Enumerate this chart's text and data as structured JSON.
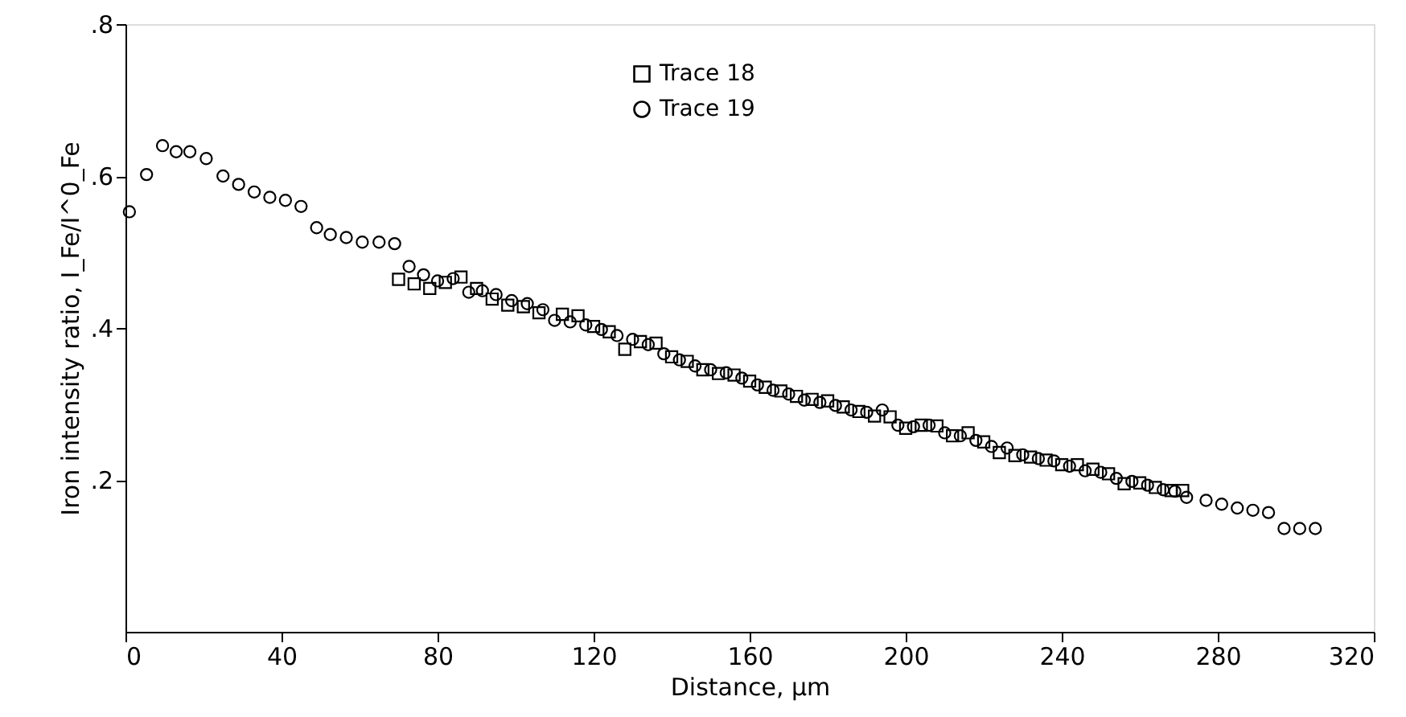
{
  "chart_data": {
    "type": "scatter",
    "xlabel": "Distance, µm",
    "ylabel": "Iron intensity ratio, I_Fe/I^0_Fe",
    "xlim": [
      0,
      320
    ],
    "xticks": [
      0,
      40,
      80,
      120,
      160,
      200,
      240,
      280,
      320
    ],
    "ylim": [
      0,
      0.8
    ],
    "yticks": [
      {
        "value": 0.2,
        "label": ".2"
      },
      {
        "value": 0.4,
        "label": ".4"
      },
      {
        "value": 0.6,
        "label": ".6"
      },
      {
        "value": 0.8,
        "label": ".8"
      }
    ],
    "grid": false,
    "legend": "top",
    "series": [
      {
        "name": "Trace 18",
        "color": "#000000",
        "marker": "square",
        "x": [
          70,
          74,
          78,
          82,
          86,
          90,
          94,
          98,
          102,
          106,
          112,
          116,
          120,
          124,
          128,
          132,
          136,
          140,
          144,
          148,
          152,
          156,
          160,
          164,
          168,
          172,
          176,
          180,
          184,
          188,
          192,
          196,
          200,
          204,
          208,
          212,
          216,
          220,
          224,
          228,
          232,
          236,
          240,
          244,
          248,
          252,
          256,
          260,
          264,
          268,
          271
        ],
        "values": [
          0.464,
          0.458,
          0.452,
          0.46,
          0.467,
          0.452,
          0.438,
          0.43,
          0.428,
          0.42,
          0.418,
          0.416,
          0.402,
          0.395,
          0.372,
          0.382,
          0.38,
          0.362,
          0.356,
          0.345,
          0.34,
          0.338,
          0.33,
          0.322,
          0.317,
          0.31,
          0.306,
          0.304,
          0.296,
          0.29,
          0.284,
          0.283,
          0.268,
          0.272,
          0.271,
          0.258,
          0.262,
          0.25,
          0.236,
          0.232,
          0.23,
          0.226,
          0.22,
          0.22,
          0.214,
          0.208,
          0.195,
          0.196,
          0.19,
          0.186,
          0.186
        ]
      },
      {
        "name": "Trace 19",
        "color": "#000000",
        "marker": "circle",
        "x": [
          1,
          5.4,
          9.5,
          13,
          16.5,
          20.7,
          25,
          29,
          33,
          37,
          41,
          45,
          49,
          52.5,
          56.6,
          60.7,
          65,
          69,
          72.7,
          76.4,
          80,
          84,
          88,
          91.5,
          95,
          99,
          103,
          107,
          110,
          114,
          118,
          122,
          126,
          130,
          134,
          138,
          142,
          146,
          150,
          154,
          158,
          162,
          166,
          170,
          174,
          178,
          182,
          186,
          190,
          194,
          198,
          202,
          206,
          210,
          214,
          218,
          222,
          226,
          230,
          234,
          238,
          242,
          246,
          250,
          254,
          258,
          262,
          266,
          269,
          272,
          277,
          281,
          285,
          289,
          293,
          297,
          301,
          305
        ],
        "values": [
          0.553,
          0.602,
          0.64,
          0.632,
          0.632,
          0.623,
          0.6,
          0.589,
          0.579,
          0.572,
          0.568,
          0.56,
          0.532,
          0.523,
          0.519,
          0.513,
          0.513,
          0.511,
          0.481,
          0.47,
          0.462,
          0.465,
          0.447,
          0.449,
          0.444,
          0.436,
          0.432,
          0.424,
          0.41,
          0.408,
          0.404,
          0.398,
          0.39,
          0.385,
          0.378,
          0.366,
          0.358,
          0.35,
          0.345,
          0.341,
          0.334,
          0.325,
          0.318,
          0.313,
          0.305,
          0.302,
          0.298,
          0.292,
          0.289,
          0.292,
          0.272,
          0.27,
          0.272,
          0.262,
          0.258,
          0.252,
          0.244,
          0.242,
          0.233,
          0.228,
          0.225,
          0.218,
          0.212,
          0.21,
          0.202,
          0.198,
          0.193,
          0.187,
          0.185,
          0.177,
          0.173,
          0.168,
          0.163,
          0.16,
          0.157,
          0.136,
          0.136,
          0.136
        ]
      }
    ]
  }
}
